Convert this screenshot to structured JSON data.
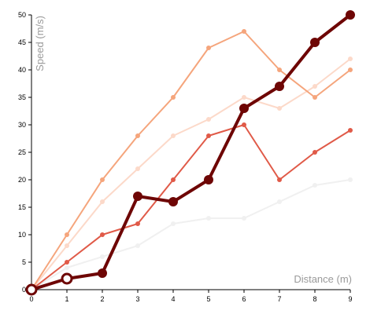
{
  "chart_data": {
    "type": "line",
    "xlabel": "Distance (m)",
    "ylabel": "Speed (m/s)",
    "xlim": [
      0,
      9
    ],
    "ylim": [
      0,
      50
    ],
    "x_ticks": [
      "0",
      "1",
      "2",
      "3",
      "4",
      "5",
      "6",
      "7",
      "8",
      "9"
    ],
    "y_ticks": [
      "0",
      "5",
      "10",
      "15",
      "20",
      "25",
      "30",
      "35",
      "40",
      "45",
      "50"
    ],
    "grid": false,
    "legend": "none",
    "x": [
      0,
      1,
      2,
      3,
      4,
      5,
      6,
      7,
      8,
      9
    ],
    "series": [
      {
        "color": "#f0f0f0",
        "values": [
          0,
          4,
          6,
          8,
          12,
          13,
          13,
          16,
          19,
          20
        ]
      },
      {
        "color": "#fcd9c9",
        "values": [
          0,
          8,
          16,
          22,
          28,
          31,
          35,
          33,
          37,
          42
        ]
      },
      {
        "color": "#f5a57c",
        "values": [
          0,
          10,
          20,
          28,
          35,
          44,
          47,
          40,
          35,
          40
        ]
      },
      {
        "color": "#e05a48",
        "values": [
          0,
          5,
          10,
          12,
          20,
          28,
          30,
          20,
          25,
          29
        ]
      },
      {
        "color": "#6e0605",
        "values": [
          0,
          2,
          3,
          17,
          16,
          20,
          33,
          37,
          45,
          50
        ]
      }
    ]
  }
}
